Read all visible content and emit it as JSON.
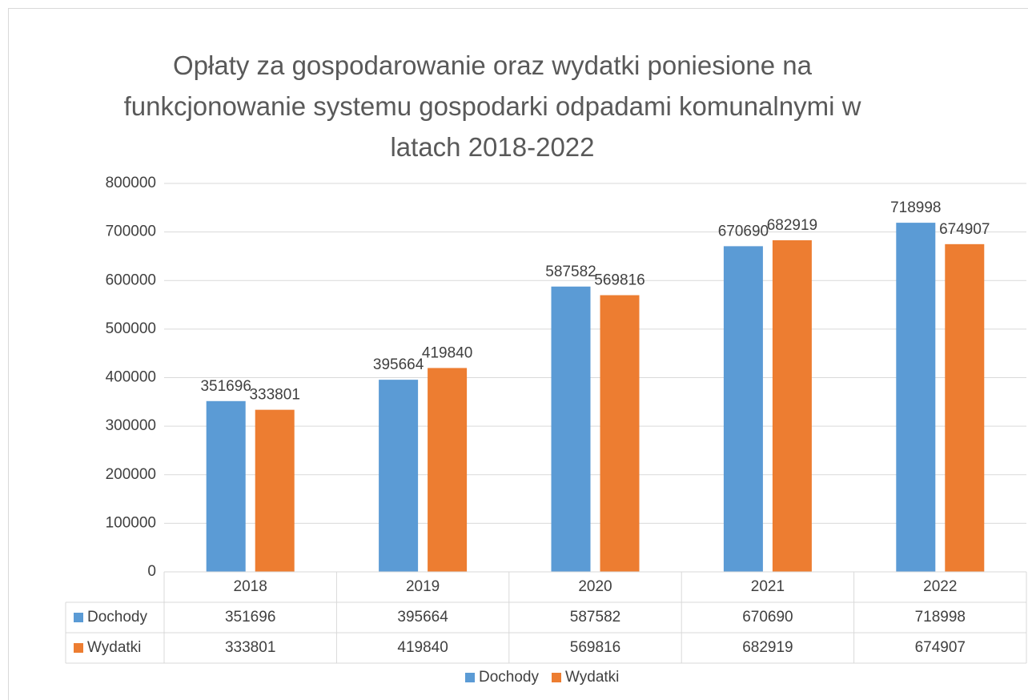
{
  "chart_data": {
    "type": "bar",
    "title": "Opłaty za gospodarowanie oraz wydatki poniesione na funkcjonowanie systemu gospodarki odpadami komunalnymi w latach 2018-2022",
    "categories": [
      "2018",
      "2019",
      "2020",
      "2021",
      "2022"
    ],
    "series": [
      {
        "name": "Dochody",
        "color": "#5b9bd5",
        "values": [
          351696,
          395664,
          587582,
          670690,
          718998
        ]
      },
      {
        "name": "Wydatki",
        "color": "#ed7d31",
        "values": [
          333801,
          419840,
          569816,
          682919,
          674907
        ]
      }
    ],
    "ylim": [
      0,
      800000
    ],
    "yticks": [
      0,
      100000,
      200000,
      300000,
      400000,
      500000,
      600000,
      700000,
      800000
    ],
    "grid": true,
    "data_table": true,
    "legend": "bottom"
  }
}
